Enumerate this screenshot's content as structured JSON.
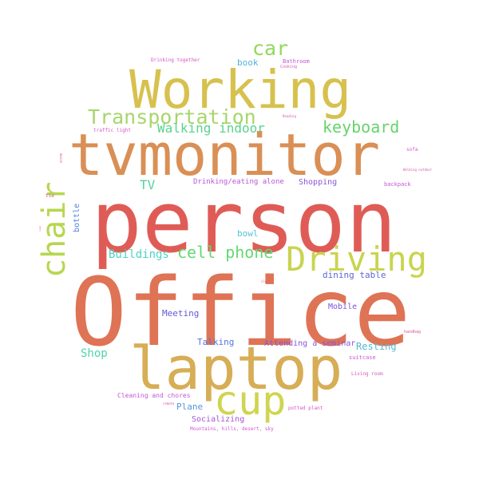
{
  "words": [
    {
      "text": "person",
      "color": "#df5c56",
      "layout": "xl"
    },
    {
      "text": "Office",
      "color": "#df7355",
      "layout": "xl"
    },
    {
      "text": "tvmonitor",
      "color": "#d98f55",
      "layout": "lg"
    },
    {
      "text": "Working",
      "color": "#d7c14e",
      "layout": "lg"
    },
    {
      "text": "laptop",
      "color": "#d7ad55",
      "layout": "lg"
    },
    {
      "text": "cup",
      "color": "#cfd54f",
      "layout": "md"
    },
    {
      "text": "Driving",
      "color": "#c9d44f",
      "layout": "md"
    },
    {
      "text": "chair",
      "color": "#b7d64f",
      "layout": "md"
    },
    {
      "text": "Transportation",
      "color": "#a7d66b",
      "layout": "md"
    },
    {
      "text": "car",
      "color": "#93d85b",
      "layout": "md"
    },
    {
      "text": "keyboard",
      "color": "#67d36b",
      "layout": "sm"
    },
    {
      "text": "cell phone",
      "color": "#64d874",
      "layout": "sm"
    },
    {
      "text": "Walking indoor",
      "color": "#5ad38d",
      "layout": "sm"
    },
    {
      "text": "TV",
      "color": "#4fd69a",
      "layout": "sm"
    },
    {
      "text": "Buildings",
      "color": "#4dd3c3",
      "layout": "sm"
    },
    {
      "text": "Shop",
      "color": "#4fd6a8",
      "layout": "sm"
    },
    {
      "text": "bowl",
      "color": "#55c3d8",
      "layout": "xs"
    },
    {
      "text": "book",
      "color": "#55b0d8",
      "layout": "xs"
    },
    {
      "text": "Plane",
      "color": "#5597d8",
      "layout": "xs"
    },
    {
      "text": "Resting",
      "color": "#55b7d8",
      "layout": "xs"
    },
    {
      "text": "Talking",
      "color": "#5573d8",
      "layout": "xs"
    },
    {
      "text": "Meeting",
      "color": "#6358d8",
      "layout": "xs"
    },
    {
      "text": "dining table",
      "color": "#5f66d2",
      "layout": "xs"
    },
    {
      "text": "Mobile",
      "color": "#7a55d8",
      "layout": "xs"
    },
    {
      "text": "bottle",
      "color": "#5585d8",
      "layout": "xs"
    },
    {
      "text": "Shopping",
      "color": "#8a55d8",
      "layout": "xs"
    },
    {
      "text": "Attending a seminar",
      "color": "#8b55d8",
      "layout": "xs"
    },
    {
      "text": "Socializing",
      "color": "#a355d8",
      "layout": "xs"
    },
    {
      "text": "Drinking/eating alone",
      "color": "#b955d8",
      "layout": "xxs"
    },
    {
      "text": "Cleaning and chores",
      "color": "#c355d8",
      "layout": "xxs"
    },
    {
      "text": "backpack",
      "color": "#c455d8",
      "layout": "xxs"
    },
    {
      "text": "suitcase",
      "color": "#cb55d8",
      "layout": "xxs"
    },
    {
      "text": "Bathroom",
      "color": "#c655d8",
      "layout": "xxs"
    },
    {
      "text": "Drinking together",
      "color": "#d655c8",
      "layout": "xxs"
    },
    {
      "text": "Living room",
      "color": "#d655b5",
      "layout": "xxs"
    },
    {
      "text": "potted plant",
      "color": "#d555c4",
      "layout": "xxs"
    },
    {
      "text": "Mountains, hills, desert, sky",
      "color": "#cf55d8",
      "layout": "xxs"
    },
    {
      "text": "traffic light",
      "color": "#d455c4",
      "layout": "xxs"
    },
    {
      "text": "tie",
      "color": "#d45599",
      "layout": "xxs"
    },
    {
      "text": "sofa",
      "color": "#d855c9",
      "layout": "xxs"
    },
    {
      "text": "Cooking",
      "color": "#d955b6",
      "layout": "xxs"
    },
    {
      "text": "Walking outdoor",
      "color": "#d955a6",
      "layout": "xxs"
    },
    {
      "text": "handbag",
      "color": "#d85593",
      "layout": "xxs"
    },
    {
      "text": "mouse",
      "color": "#d65597",
      "layout": "xxs"
    },
    {
      "text": "Reading",
      "color": "#d655a6",
      "layout": "xxs"
    },
    {
      "text": "clock",
      "color": "#d65585",
      "layout": "xxs"
    },
    {
      "text": "oven",
      "color": "#d65592",
      "layout": "xxs"
    },
    {
      "text": "remote",
      "color": "#d655a3",
      "layout": "xxs"
    }
  ]
}
